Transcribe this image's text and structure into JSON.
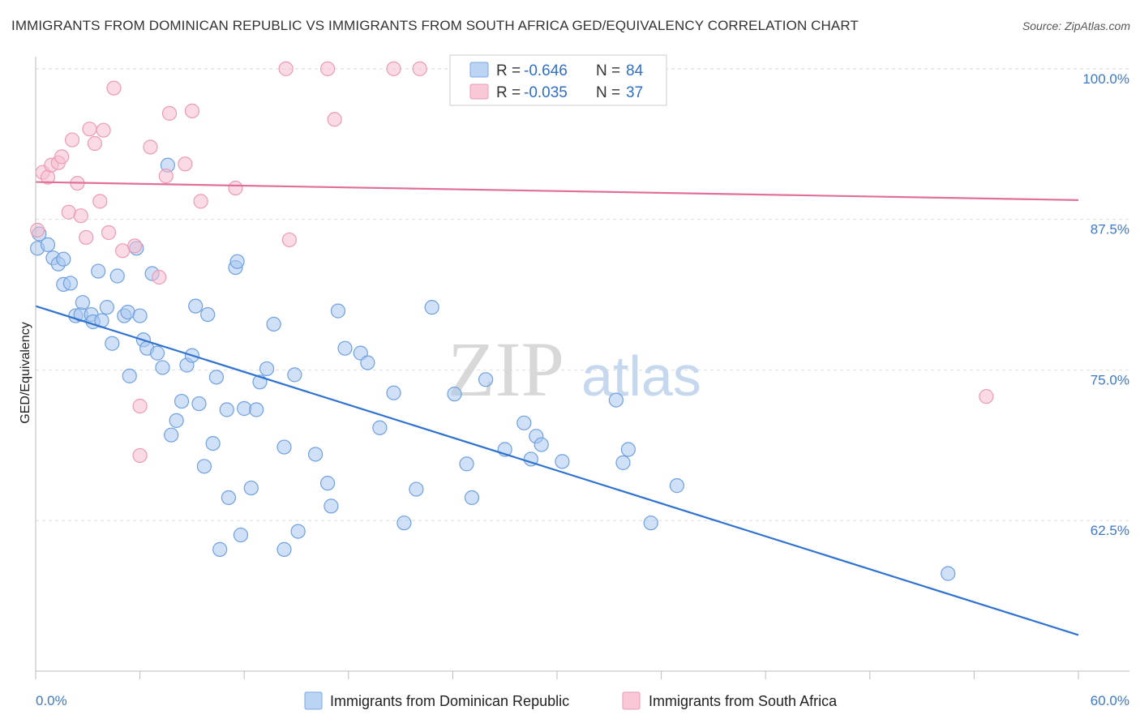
{
  "title": "IMMIGRANTS FROM DOMINICAN REPUBLIC VS IMMIGRANTS FROM SOUTH AFRICA GED/EQUIVALENCY CORRELATION CHART",
  "source": "Source: ZipAtlas.com",
  "watermark": {
    "zip": "ZIP",
    "atlas": "atlas"
  },
  "legend": {
    "r_label": "R =",
    "n_label": "N =",
    "rows": [
      {
        "r": "-0.646",
        "n": "84"
      },
      {
        "r": "-0.035",
        "n": "37"
      }
    ]
  },
  "chart_data": {
    "type": "scatter",
    "title": "IMMIGRANTS FROM DOMINICAN REPUBLIC VS IMMIGRANTS FROM SOUTH AFRICA GED/EQUIVALENCY CORRELATION CHART",
    "xlabel": "",
    "ylabel": "GED/Equivalency",
    "xlim": [
      0,
      60
    ],
    "ylim": [
      50,
      101
    ],
    "x_tick_labels": [
      "0.0%",
      "60.0%"
    ],
    "y_ticks": [
      {
        "value": 100,
        "label": "100.0%"
      },
      {
        "value": 87.5,
        "label": "87.5%"
      },
      {
        "value": 75,
        "label": "75.0%"
      },
      {
        "value": 62.5,
        "label": "62.5%"
      }
    ],
    "grid": true,
    "legend_position": "top-center",
    "series": [
      {
        "name": "Immigrants from Dominican Republic",
        "color": "#6fa0e0",
        "line_color": "#2f72d0",
        "trend": {
          "x": [
            0,
            60
          ],
          "y": [
            80.3,
            53.0
          ]
        },
        "points": [
          [
            0.1,
            85.1
          ],
          [
            0.7,
            85.4
          ],
          [
            1.0,
            84.3
          ],
          [
            1.3,
            83.8
          ],
          [
            1.6,
            82.1
          ],
          [
            2.0,
            82.2
          ],
          [
            2.3,
            79.5
          ],
          [
            2.6,
            79.6
          ],
          [
            2.7,
            80.6
          ],
          [
            3.2,
            79.6
          ],
          [
            3.3,
            79.0
          ],
          [
            3.8,
            79.1
          ],
          [
            3.6,
            83.2
          ],
          [
            4.1,
            80.2
          ],
          [
            4.4,
            77.2
          ],
          [
            4.7,
            82.8
          ],
          [
            5.1,
            79.5
          ],
          [
            5.3,
            79.8
          ],
          [
            5.4,
            74.5
          ],
          [
            5.8,
            85.1
          ],
          [
            6.0,
            79.5
          ],
          [
            6.2,
            77.5
          ],
          [
            6.4,
            76.8
          ],
          [
            6.7,
            83.0
          ],
          [
            7.0,
            76.4
          ],
          [
            7.3,
            75.2
          ],
          [
            7.6,
            92.0
          ],
          [
            7.8,
            69.6
          ],
          [
            8.1,
            70.8
          ],
          [
            8.4,
            72.4
          ],
          [
            8.7,
            75.4
          ],
          [
            9.0,
            76.2
          ],
          [
            9.2,
            80.3
          ],
          [
            9.4,
            72.2
          ],
          [
            9.7,
            67.0
          ],
          [
            9.9,
            79.6
          ],
          [
            10.2,
            68.9
          ],
          [
            10.4,
            74.4
          ],
          [
            10.6,
            60.1
          ],
          [
            11.0,
            71.7
          ],
          [
            11.1,
            64.4
          ],
          [
            11.5,
            83.5
          ],
          [
            11.6,
            84.0
          ],
          [
            11.8,
            61.3
          ],
          [
            12.0,
            71.8
          ],
          [
            12.4,
            65.2
          ],
          [
            12.7,
            71.7
          ],
          [
            12.9,
            74.0
          ],
          [
            13.3,
            75.1
          ],
          [
            13.7,
            78.8
          ],
          [
            14.3,
            68.6
          ],
          [
            14.3,
            60.1
          ],
          [
            14.9,
            74.6
          ],
          [
            15.1,
            61.6
          ],
          [
            16.1,
            68.0
          ],
          [
            16.8,
            65.6
          ],
          [
            17.0,
            63.7
          ],
          [
            17.4,
            79.9
          ],
          [
            17.8,
            76.8
          ],
          [
            18.7,
            76.4
          ],
          [
            19.1,
            75.6
          ],
          [
            19.8,
            70.2
          ],
          [
            20.6,
            73.1
          ],
          [
            21.2,
            62.3
          ],
          [
            21.9,
            65.1
          ],
          [
            22.8,
            80.2
          ],
          [
            24.1,
            73.0
          ],
          [
            24.8,
            67.2
          ],
          [
            25.1,
            64.4
          ],
          [
            25.9,
            74.2
          ],
          [
            27.0,
            68.4
          ],
          [
            28.1,
            70.6
          ],
          [
            28.5,
            67.6
          ],
          [
            28.8,
            69.5
          ],
          [
            29.1,
            68.8
          ],
          [
            30.3,
            67.4
          ],
          [
            33.4,
            72.5
          ],
          [
            33.8,
            67.3
          ],
          [
            34.1,
            68.4
          ],
          [
            35.4,
            62.3
          ],
          [
            36.9,
            65.4
          ],
          [
            52.5,
            58.1
          ],
          [
            0.2,
            86.3
          ],
          [
            1.6,
            84.2
          ]
        ]
      },
      {
        "name": "Immigrants from South Africa",
        "color": "#f0a0b8",
        "line_color": "#e0709a",
        "trend": {
          "x": [
            0,
            60
          ],
          "y": [
            90.6,
            89.1
          ]
        },
        "points": [
          [
            0.1,
            86.6
          ],
          [
            0.4,
            91.4
          ],
          [
            0.7,
            91.0
          ],
          [
            0.9,
            92.0
          ],
          [
            1.3,
            92.2
          ],
          [
            1.5,
            92.7
          ],
          [
            1.9,
            88.1
          ],
          [
            2.1,
            94.1
          ],
          [
            2.4,
            90.5
          ],
          [
            2.6,
            87.8
          ],
          [
            2.9,
            86.0
          ],
          [
            3.1,
            95.0
          ],
          [
            3.4,
            93.8
          ],
          [
            3.7,
            89.0
          ],
          [
            3.9,
            94.9
          ],
          [
            4.2,
            86.4
          ],
          [
            4.5,
            98.4
          ],
          [
            5.0,
            84.9
          ],
          [
            5.7,
            85.3
          ],
          [
            6.0,
            72.0
          ],
          [
            6.0,
            67.9
          ],
          [
            6.6,
            93.5
          ],
          [
            7.1,
            82.7
          ],
          [
            7.5,
            91.1
          ],
          [
            7.7,
            96.3
          ],
          [
            8.6,
            92.1
          ],
          [
            9.0,
            96.5
          ],
          [
            9.5,
            89.0
          ],
          [
            11.5,
            90.1
          ],
          [
            14.4,
            100.0
          ],
          [
            14.6,
            85.8
          ],
          [
            16.8,
            100.0
          ],
          [
            17.2,
            95.8
          ],
          [
            20.6,
            100.0
          ],
          [
            22.1,
            100.0
          ],
          [
            33.5,
            100.0
          ],
          [
            54.7,
            72.8
          ]
        ]
      }
    ]
  }
}
